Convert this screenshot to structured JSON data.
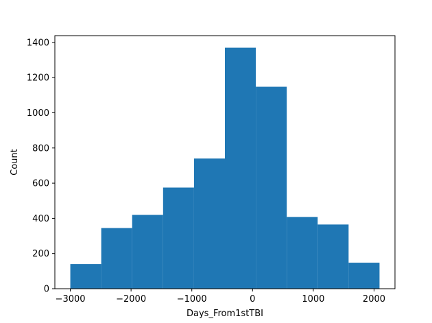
{
  "chart_data": {
    "type": "histogram",
    "xlabel": "Days_From1stTBI",
    "ylabel": "Count",
    "bins": [
      {
        "start": -3000,
        "end": -2491,
        "count": 140
      },
      {
        "start": -2491,
        "end": -1982,
        "count": 345
      },
      {
        "start": -1982,
        "end": -1473,
        "count": 420
      },
      {
        "start": -1473,
        "end": -964,
        "count": 575
      },
      {
        "start": -964,
        "end": -455,
        "count": 740
      },
      {
        "start": -455,
        "end": 54,
        "count": 1370
      },
      {
        "start": 54,
        "end": 563,
        "count": 1148
      },
      {
        "start": 563,
        "end": 1072,
        "count": 408
      },
      {
        "start": 1072,
        "end": 1581,
        "count": 365
      },
      {
        "start": 1581,
        "end": 2090,
        "count": 148
      }
    ],
    "xlim": [
      -3254.5,
      2344.5
    ],
    "ylim": [
      0,
      1438.5
    ],
    "xticks": [
      -3000,
      -2000,
      -1000,
      0,
      1000,
      2000
    ],
    "xtick_labels": [
      "−3000",
      "−2000",
      "−1000",
      "0",
      "1000",
      "2000"
    ],
    "yticks": [
      0,
      200,
      400,
      600,
      800,
      1000,
      1200,
      1400
    ],
    "ytick_labels": [
      "0",
      "200",
      "400",
      "600",
      "800",
      "1000",
      "1200",
      "1400"
    ],
    "bar_color": "#1f77b4",
    "grid": false,
    "legend": "none"
  }
}
